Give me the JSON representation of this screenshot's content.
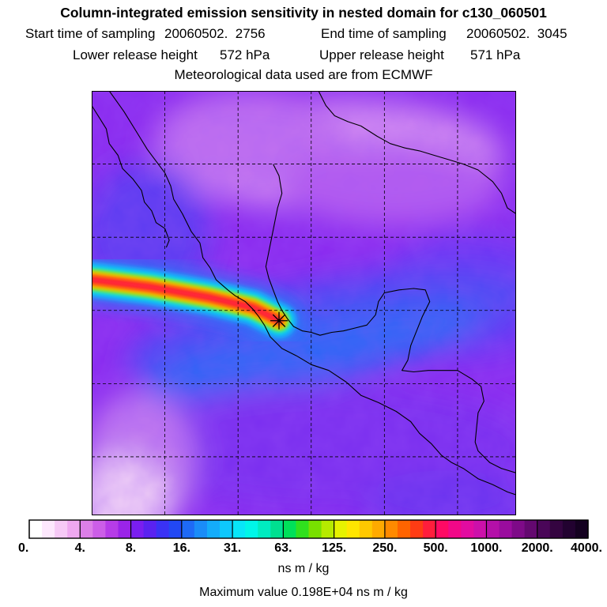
{
  "chart_data": {
    "type": "heatmap",
    "title": "Column-integrated emission sensitivity in nested domain for c130_060501",
    "subtitle": {
      "start_label": "Start time of sampling",
      "start_value": "20060502.  2756",
      "end_label": "End time of sampling",
      "end_value": "20060502.  3045",
      "lower_label": "Lower release height",
      "lower_value": "572 hPa",
      "upper_label": "Upper release height",
      "upper_value": "571 hPa",
      "meteo": "Meteorological data used are from ECMWF"
    },
    "colorbar": {
      "tick_labels": [
        "0.",
        "4.",
        "8.",
        "16.",
        "31.",
        "63.",
        "125.",
        "250.",
        "500.",
        "1000.",
        "2000.",
        "4000."
      ],
      "tick_values": [
        0,
        4,
        8,
        16,
        31,
        63,
        125,
        250,
        500,
        1000,
        2000,
        4000
      ],
      "colors": [
        "#ffffff",
        "#fde8fd",
        "#f6c9f6",
        "#eea8f0",
        "#dc7fe8",
        "#cc5ee8",
        "#b63ce8",
        "#9a24e8",
        "#7a1ef0",
        "#5a22f0",
        "#3a32f4",
        "#2248f4",
        "#1e6af6",
        "#1a8cf8",
        "#14acfa",
        "#0ec8fc",
        "#08e6f8",
        "#00f6e8",
        "#00ecc0",
        "#00e090",
        "#00e05a",
        "#30e01e",
        "#78e000",
        "#b6ea00",
        "#e6f200",
        "#ffe600",
        "#ffc800",
        "#ffaa00",
        "#ff8a00",
        "#ff6400",
        "#ff3c14",
        "#ff1e3c",
        "#ff0a64",
        "#f20888",
        "#e20ca0",
        "#cc10aa",
        "#b410a8",
        "#9a0c9e",
        "#7e0a88",
        "#640870",
        "#4a0658",
        "#340440",
        "#220230",
        "#140120"
      ],
      "units": "ns m / kg"
    },
    "max_value": "Maximum value  0.198E+04 ns m / kg",
    "plume": {
      "receptor_lonlat": [
        -97.2,
        19.3
      ],
      "path_lonlat": [
        [
          -110.0,
          22.1
        ],
        [
          -106.0,
          21.6
        ],
        [
          -102.0,
          20.9
        ],
        [
          -99.0,
          20.2
        ],
        [
          -97.2,
          19.3
        ]
      ],
      "peak_value": 1980
    },
    "map_extent": {
      "lon_min": -110.0,
      "lon_max": -81.0,
      "lat_min": 6.0,
      "lat_max": 35.0
    },
    "grid": {
      "lon_lines": [
        -105,
        -100,
        -95,
        -90,
        -85
      ],
      "lat_lines": [
        10,
        15,
        20,
        25,
        30
      ]
    },
    "background_field": "purple-blue sensitivity field; darker blue band along plume, light/white areas over northern land and southwest ocean"
  },
  "colors": {
    "background": "#ffffff",
    "frame": "#000000",
    "coast": "#000000"
  }
}
